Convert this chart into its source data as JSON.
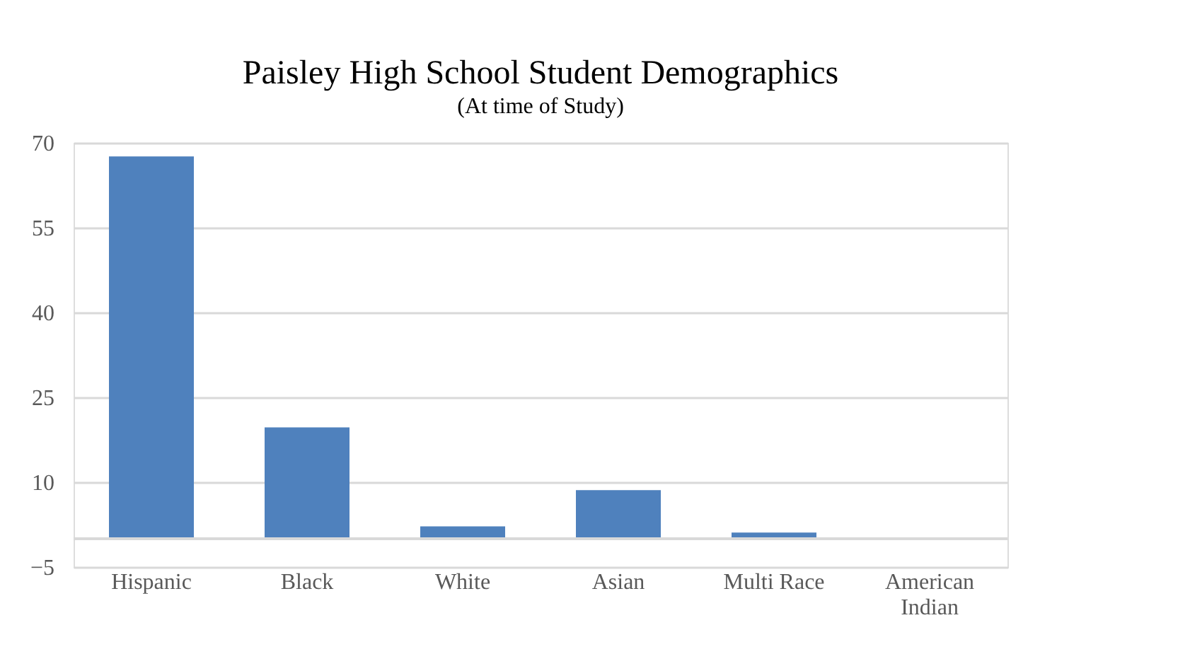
{
  "chart_data": {
    "type": "bar",
    "title": "Paisley High School Student Demographics",
    "subtitle": "(At time of Study)",
    "categories": [
      "Hispanic",
      "Black",
      "White",
      "Asian",
      "Multi Race",
      "American Indian"
    ],
    "values": [
      67.6,
      19.7,
      2.2,
      8.6,
      1.1,
      0
    ],
    "color": "#4f81bd",
    "ylim": [
      -5,
      70
    ],
    "yticks": [
      -5,
      10,
      25,
      40,
      55,
      70
    ],
    "grid": "y",
    "ref_lines": [
      {
        "axis": "y",
        "value": 0,
        "color": "#d9d9d9"
      }
    ]
  }
}
